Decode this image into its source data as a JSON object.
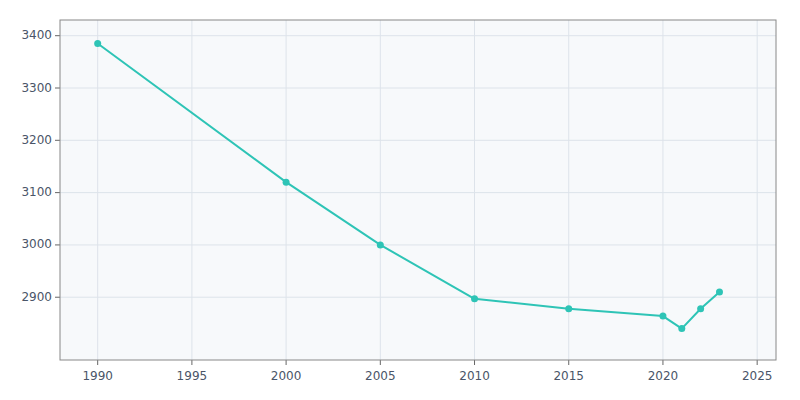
{
  "chart_data": {
    "type": "line",
    "x": [
      1990,
      2000,
      2005,
      2010,
      2015,
      2020,
      2021,
      2022,
      2023
    ],
    "values": [
      3385,
      3120,
      3000,
      2897,
      2878,
      2864,
      2840,
      2878,
      2910
    ],
    "color": "#2ec4b6",
    "marker": "circle",
    "xlim": [
      1988,
      2026
    ],
    "ylim": [
      2780,
      3430
    ],
    "xticks": [
      1990,
      1995,
      2000,
      2005,
      2010,
      2015,
      2020,
      2025
    ],
    "yticks": [
      2900,
      3000,
      3100,
      3200,
      3300,
      3400
    ],
    "grid": true
  }
}
